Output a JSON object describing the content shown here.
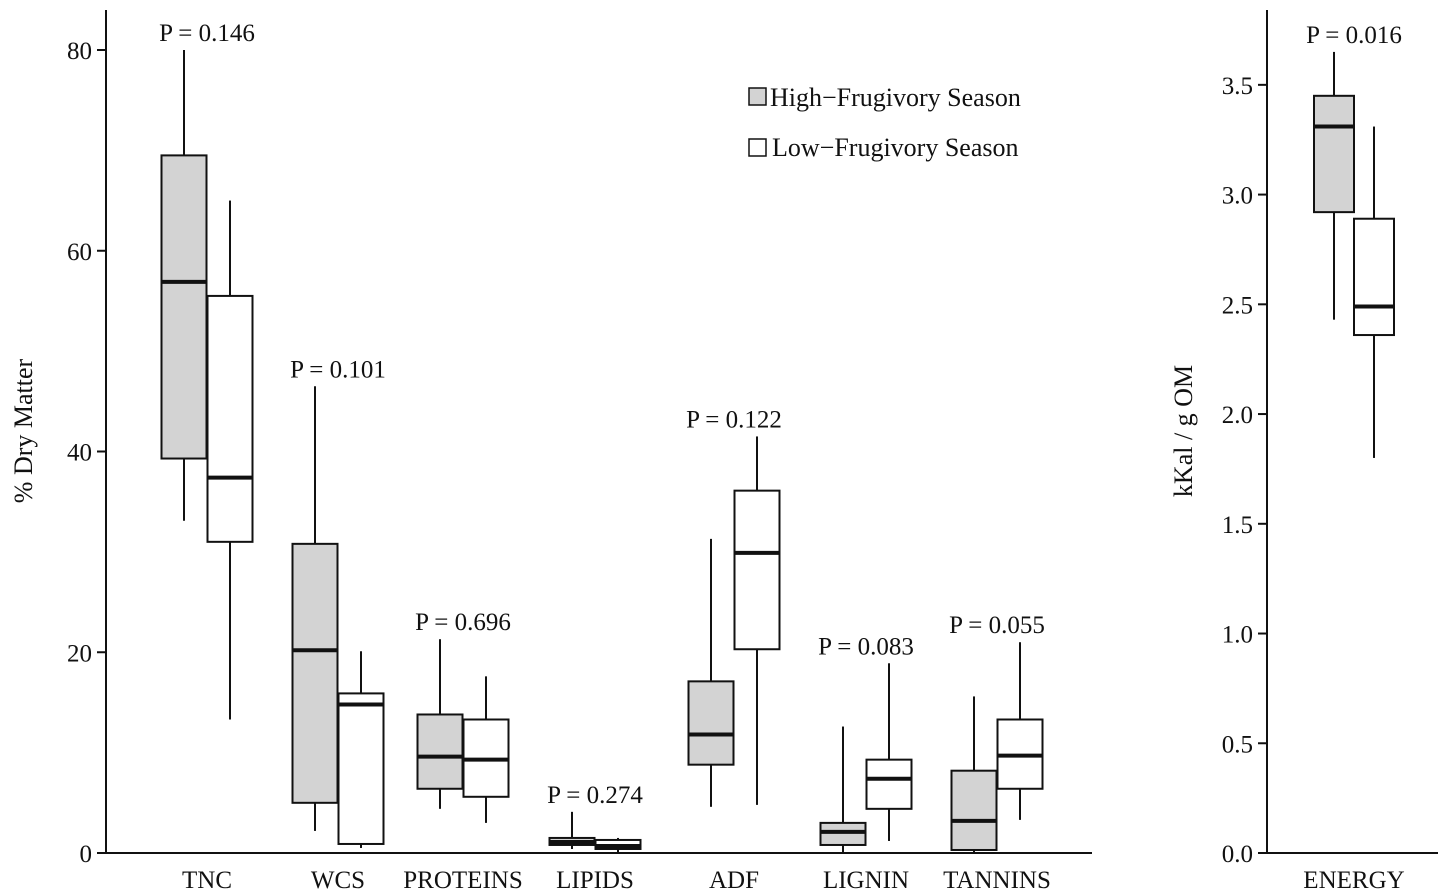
{
  "chart_data": [
    {
      "type": "box",
      "ylabel": "% Dry Matter",
      "ylim": [
        0,
        80
      ],
      "yticks": [
        "0",
        "20",
        "40",
        "60",
        "80"
      ],
      "legend": {
        "placement": "top-right",
        "entries": [
          {
            "label": "High−Frugivory Season",
            "fill": "#d3d3d3"
          },
          {
            "label": "Low−Frugivory Season",
            "fill": "#ffffff"
          }
        ]
      },
      "categories": [
        "TNC",
        "WCS",
        "PROTEINS",
        "LIPIDS",
        "ADF",
        "LIGNIN",
        "TANNINS"
      ],
      "p_labels": [
        "P  = 0.146",
        "P  = 0.101",
        "P  = 0.696",
        "P  = 0.274",
        "P  = 0.122",
        "P  = 0.083",
        "P  = 0.055"
      ],
      "series": [
        {
          "name": "High−Frugivory Season",
          "boxes": [
            {
              "min": 33.1,
              "q1": 39.3,
              "median": 56.9,
              "q3": 69.5,
              "max": 80.0
            },
            {
              "min": 2.2,
              "q1": 5.0,
              "median": 20.2,
              "q3": 30.8,
              "max": 46.5
            },
            {
              "min": 4.4,
              "q1": 6.4,
              "median": 9.6,
              "q3": 13.8,
              "max": 21.3
            },
            {
              "min": 0.4,
              "q1": 0.8,
              "median": 1.1,
              "q3": 1.5,
              "max": 4.1
            },
            {
              "min": 4.6,
              "q1": 8.8,
              "median": 11.8,
              "q3": 17.1,
              "max": 31.3
            },
            {
              "min": 0.1,
              "q1": 0.8,
              "median": 2.1,
              "q3": 3.0,
              "max": 12.6
            },
            {
              "min": 0.0,
              "q1": 0.3,
              "median": 3.2,
              "q3": 8.2,
              "max": 15.6
            }
          ]
        },
        {
          "name": "Low−Frugivory Season",
          "boxes": [
            {
              "min": 13.3,
              "q1": 31.0,
              "median": 37.4,
              "q3": 55.5,
              "max": 65.0
            },
            {
              "min": 0.5,
              "q1": 0.9,
              "median": 14.8,
              "q3": 15.9,
              "max": 20.1
            },
            {
              "min": 3.0,
              "q1": 5.6,
              "median": 9.3,
              "q3": 13.3,
              "max": 17.6
            },
            {
              "min": 0.1,
              "q1": 0.4,
              "median": 0.7,
              "q3": 1.3,
              "max": 1.5
            },
            {
              "min": 4.8,
              "q1": 20.3,
              "median": 29.9,
              "q3": 36.1,
              "max": 41.5
            },
            {
              "min": 1.2,
              "q1": 4.4,
              "median": 7.4,
              "q3": 9.3,
              "max": 18.9
            },
            {
              "min": 3.3,
              "q1": 6.4,
              "median": 9.7,
              "q3": 13.3,
              "max": 21.0
            }
          ]
        }
      ]
    },
    {
      "type": "box",
      "ylabel": "kKal / g OM",
      "ylim": [
        0.0,
        3.8
      ],
      "yticks": [
        "0.0",
        "0.5",
        "1.0",
        "1.5",
        "2.0",
        "2.5",
        "3.0",
        "3.5"
      ],
      "categories": [
        "ENERGY"
      ],
      "p_labels": [
        "P  = 0.016"
      ],
      "series": [
        {
          "name": "High−Frugivory Season",
          "boxes": [
            {
              "min": 2.43,
              "q1": 2.92,
              "median": 3.31,
              "q3": 3.45,
              "max": 3.65
            }
          ]
        },
        {
          "name": "Low−Frugivory Season",
          "boxes": [
            {
              "min": 1.8,
              "q1": 2.36,
              "median": 2.49,
              "q3": 2.89,
              "max": 3.31
            }
          ]
        }
      ]
    }
  ]
}
